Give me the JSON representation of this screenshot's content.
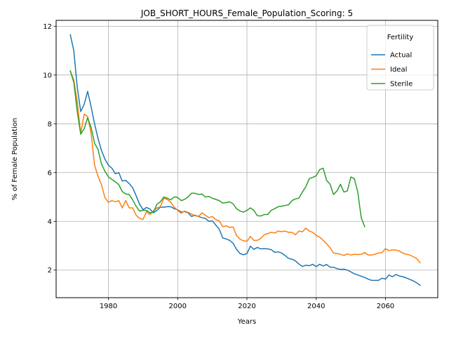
{
  "chart_data": {
    "type": "line",
    "title": "JOB_SHORT_HOURS_Female_Population_Scoring: 5",
    "xlabel": "Years",
    "ylabel": "% of Female Population",
    "xlim": [
      1964.9,
      2075.1
    ],
    "ylim": [
      0.87,
      12.24
    ],
    "xticks": [
      1980,
      2000,
      2020,
      2040,
      2060
    ],
    "yticks": [
      2,
      4,
      6,
      8,
      10,
      12
    ],
    "grid": true,
    "legend": {
      "title": "Fertility",
      "placement": "top-right"
    },
    "series": [
      {
        "name": "Actual",
        "color": "#1f77b4",
        "points": [
          [
            1969,
            11.65
          ],
          [
            1970,
            11.0
          ],
          [
            1971,
            9.5
          ],
          [
            1972,
            8.5
          ],
          [
            1973,
            8.8
          ],
          [
            1974,
            9.33
          ],
          [
            1975,
            8.7
          ],
          [
            1976,
            8.0
          ],
          [
            1977,
            7.4
          ],
          [
            1978,
            6.9
          ],
          [
            1979,
            6.55
          ],
          [
            1980,
            6.3
          ],
          [
            1981,
            6.18
          ],
          [
            1982,
            5.95
          ],
          [
            1983,
            6.0
          ],
          [
            1984,
            5.65
          ],
          [
            1985,
            5.68
          ],
          [
            1986,
            5.55
          ],
          [
            1987,
            5.38
          ],
          [
            1988,
            5.05
          ],
          [
            1989,
            4.7
          ],
          [
            1990,
            4.48
          ],
          [
            1991,
            4.57
          ],
          [
            1992,
            4.5
          ],
          [
            1993,
            4.35
          ],
          [
            1994,
            4.45
          ],
          [
            1995,
            4.58
          ],
          [
            1996,
            4.58
          ],
          [
            1997,
            4.6
          ],
          [
            1998,
            4.6
          ],
          [
            1999,
            4.52
          ],
          [
            2000,
            4.47
          ],
          [
            2001,
            4.38
          ],
          [
            2002,
            4.4
          ],
          [
            2003,
            4.35
          ],
          [
            2004,
            4.2
          ],
          [
            2005,
            4.25
          ],
          [
            2006,
            4.2
          ],
          [
            2007,
            4.15
          ],
          [
            2008,
            4.12
          ],
          [
            2009,
            4.0
          ],
          [
            2010,
            4.02
          ],
          [
            2011,
            3.85
          ],
          [
            2012,
            3.68
          ],
          [
            2013,
            3.32
          ],
          [
            2014,
            3.28
          ],
          [
            2015,
            3.22
          ],
          [
            2016,
            3.1
          ],
          [
            2017,
            2.85
          ],
          [
            2018,
            2.68
          ],
          [
            2019,
            2.63
          ],
          [
            2020,
            2.68
          ],
          [
            2021,
            2.98
          ],
          [
            2022,
            2.85
          ],
          [
            2023,
            2.93
          ],
          [
            2024,
            2.87
          ],
          [
            2025,
            2.88
          ],
          [
            2026,
            2.87
          ],
          [
            2027,
            2.84
          ],
          [
            2028,
            2.73
          ],
          [
            2029,
            2.75
          ],
          [
            2030,
            2.7
          ],
          [
            2031,
            2.6
          ],
          [
            2032,
            2.48
          ],
          [
            2033,
            2.45
          ],
          [
            2034,
            2.38
          ],
          [
            2035,
            2.25
          ],
          [
            2036,
            2.15
          ],
          [
            2037,
            2.2
          ],
          [
            2038,
            2.18
          ],
          [
            2039,
            2.24
          ],
          [
            2040,
            2.14
          ],
          [
            2041,
            2.24
          ],
          [
            2042,
            2.17
          ],
          [
            2043,
            2.23
          ],
          [
            2044,
            2.12
          ],
          [
            2045,
            2.12
          ],
          [
            2046,
            2.06
          ],
          [
            2047,
            2.03
          ],
          [
            2048,
            2.04
          ],
          [
            2049,
            2.0
          ],
          [
            2050,
            1.93
          ],
          [
            2051,
            1.85
          ],
          [
            2052,
            1.8
          ],
          [
            2053,
            1.75
          ],
          [
            2054,
            1.7
          ],
          [
            2055,
            1.63
          ],
          [
            2056,
            1.58
          ],
          [
            2057,
            1.58
          ],
          [
            2058,
            1.58
          ],
          [
            2059,
            1.67
          ],
          [
            2060,
            1.63
          ],
          [
            2061,
            1.8
          ],
          [
            2062,
            1.73
          ],
          [
            2063,
            1.82
          ],
          [
            2064,
            1.76
          ],
          [
            2065,
            1.73
          ],
          [
            2066,
            1.68
          ],
          [
            2067,
            1.62
          ],
          [
            2068,
            1.56
          ],
          [
            2069,
            1.48
          ],
          [
            2070,
            1.38
          ]
        ]
      },
      {
        "name": "Ideal",
        "color": "#ff7f0e",
        "points": [
          [
            1969,
            10.15
          ],
          [
            1970,
            9.8
          ],
          [
            1971,
            8.9
          ],
          [
            1972,
            7.6
          ],
          [
            1973,
            8.4
          ],
          [
            1974,
            8.3
          ],
          [
            1975,
            7.6
          ],
          [
            1976,
            6.3
          ],
          [
            1977,
            5.85
          ],
          [
            1978,
            5.5
          ],
          [
            1979,
            4.97
          ],
          [
            1980,
            4.78
          ],
          [
            1981,
            4.85
          ],
          [
            1982,
            4.8
          ],
          [
            1983,
            4.85
          ],
          [
            1984,
            4.55
          ],
          [
            1985,
            4.85
          ],
          [
            1986,
            4.55
          ],
          [
            1987,
            4.55
          ],
          [
            1988,
            4.25
          ],
          [
            1989,
            4.12
          ],
          [
            1990,
            4.08
          ],
          [
            1991,
            4.4
          ],
          [
            1992,
            4.28
          ],
          [
            1993,
            4.42
          ],
          [
            1994,
            4.55
          ],
          [
            1995,
            4.6
          ],
          [
            1996,
            4.95
          ],
          [
            1997,
            4.9
          ],
          [
            1998,
            4.78
          ],
          [
            1999,
            4.58
          ],
          [
            2000,
            4.45
          ],
          [
            2001,
            4.33
          ],
          [
            2002,
            4.42
          ],
          [
            2003,
            4.37
          ],
          [
            2004,
            4.3
          ],
          [
            2005,
            4.23
          ],
          [
            2006,
            4.2
          ],
          [
            2007,
            4.35
          ],
          [
            2008,
            4.25
          ],
          [
            2009,
            4.15
          ],
          [
            2010,
            4.2
          ],
          [
            2011,
            4.07
          ],
          [
            2012,
            4.02
          ],
          [
            2013,
            3.78
          ],
          [
            2014,
            3.82
          ],
          [
            2015,
            3.75
          ],
          [
            2016,
            3.77
          ],
          [
            2017,
            3.42
          ],
          [
            2018,
            3.27
          ],
          [
            2019,
            3.2
          ],
          [
            2020,
            3.18
          ],
          [
            2021,
            3.38
          ],
          [
            2022,
            3.22
          ],
          [
            2023,
            3.22
          ],
          [
            2024,
            3.3
          ],
          [
            2025,
            3.45
          ],
          [
            2026,
            3.5
          ],
          [
            2027,
            3.55
          ],
          [
            2028,
            3.52
          ],
          [
            2029,
            3.6
          ],
          [
            2030,
            3.58
          ],
          [
            2031,
            3.6
          ],
          [
            2032,
            3.55
          ],
          [
            2033,
            3.55
          ],
          [
            2034,
            3.45
          ],
          [
            2035,
            3.6
          ],
          [
            2036,
            3.57
          ],
          [
            2037,
            3.72
          ],
          [
            2038,
            3.6
          ],
          [
            2039,
            3.55
          ],
          [
            2040,
            3.42
          ],
          [
            2041,
            3.35
          ],
          [
            2042,
            3.22
          ],
          [
            2043,
            3.08
          ],
          [
            2044,
            2.92
          ],
          [
            2045,
            2.7
          ],
          [
            2046,
            2.68
          ],
          [
            2047,
            2.65
          ],
          [
            2048,
            2.6
          ],
          [
            2049,
            2.67
          ],
          [
            2050,
            2.62
          ],
          [
            2051,
            2.65
          ],
          [
            2052,
            2.64
          ],
          [
            2053,
            2.65
          ],
          [
            2054,
            2.72
          ],
          [
            2055,
            2.62
          ],
          [
            2056,
            2.62
          ],
          [
            2057,
            2.65
          ],
          [
            2058,
            2.7
          ],
          [
            2059,
            2.72
          ],
          [
            2060,
            2.88
          ],
          [
            2061,
            2.8
          ],
          [
            2062,
            2.83
          ],
          [
            2063,
            2.82
          ],
          [
            2064,
            2.78
          ],
          [
            2065,
            2.7
          ],
          [
            2066,
            2.65
          ],
          [
            2067,
            2.62
          ],
          [
            2068,
            2.55
          ],
          [
            2069,
            2.48
          ],
          [
            2070,
            2.3
          ]
        ]
      },
      {
        "name": "Sterile",
        "color": "#2ca02c",
        "points": [
          [
            1969,
            10.17
          ],
          [
            1970,
            9.7
          ],
          [
            1971,
            8.5
          ],
          [
            1972,
            7.57
          ],
          [
            1973,
            7.8
          ],
          [
            1974,
            8.25
          ],
          [
            1975,
            7.85
          ],
          [
            1976,
            7.2
          ],
          [
            1977,
            6.95
          ],
          [
            1978,
            6.35
          ],
          [
            1979,
            6.05
          ],
          [
            1980,
            5.82
          ],
          [
            1981,
            5.72
          ],
          [
            1982,
            5.62
          ],
          [
            1983,
            5.5
          ],
          [
            1984,
            5.22
          ],
          [
            1985,
            5.12
          ],
          [
            1986,
            5.1
          ],
          [
            1987,
            4.88
          ],
          [
            1988,
            4.62
          ],
          [
            1989,
            4.42
          ],
          [
            1990,
            4.45
          ],
          [
            1991,
            4.45
          ],
          [
            1992,
            4.35
          ],
          [
            1993,
            4.38
          ],
          [
            1994,
            4.7
          ],
          [
            1995,
            4.8
          ],
          [
            1996,
            5.0
          ],
          [
            1997,
            4.95
          ],
          [
            1998,
            4.88
          ],
          [
            1999,
            5.0
          ],
          [
            2000,
            4.98
          ],
          [
            2001,
            4.85
          ],
          [
            2002,
            4.9
          ],
          [
            2003,
            5.0
          ],
          [
            2004,
            5.15
          ],
          [
            2005,
            5.15
          ],
          [
            2006,
            5.1
          ],
          [
            2007,
            5.12
          ],
          [
            2008,
            5.0
          ],
          [
            2009,
            5.02
          ],
          [
            2010,
            4.95
          ],
          [
            2011,
            4.9
          ],
          [
            2012,
            4.85
          ],
          [
            2013,
            4.75
          ],
          [
            2014,
            4.77
          ],
          [
            2015,
            4.8
          ],
          [
            2016,
            4.72
          ],
          [
            2017,
            4.52
          ],
          [
            2018,
            4.42
          ],
          [
            2019,
            4.38
          ],
          [
            2020,
            4.45
          ],
          [
            2021,
            4.55
          ],
          [
            2022,
            4.45
          ],
          [
            2023,
            4.23
          ],
          [
            2024,
            4.22
          ],
          [
            2025,
            4.28
          ],
          [
            2026,
            4.28
          ],
          [
            2027,
            4.45
          ],
          [
            2028,
            4.52
          ],
          [
            2029,
            4.6
          ],
          [
            2030,
            4.62
          ],
          [
            2031,
            4.65
          ],
          [
            2032,
            4.68
          ],
          [
            2033,
            4.85
          ],
          [
            2034,
            4.92
          ],
          [
            2035,
            4.95
          ],
          [
            2036,
            5.2
          ],
          [
            2037,
            5.42
          ],
          [
            2038,
            5.75
          ],
          [
            2039,
            5.8
          ],
          [
            2040,
            5.87
          ],
          [
            2041,
            6.12
          ],
          [
            2042,
            6.18
          ],
          [
            2043,
            5.68
          ],
          [
            2044,
            5.52
          ],
          [
            2045,
            5.1
          ],
          [
            2046,
            5.25
          ],
          [
            2047,
            5.52
          ],
          [
            2048,
            5.2
          ],
          [
            2049,
            5.25
          ],
          [
            2050,
            5.82
          ],
          [
            2051,
            5.75
          ],
          [
            2052,
            5.2
          ],
          [
            2053,
            4.15
          ],
          [
            2054,
            3.78
          ]
        ]
      }
    ]
  }
}
